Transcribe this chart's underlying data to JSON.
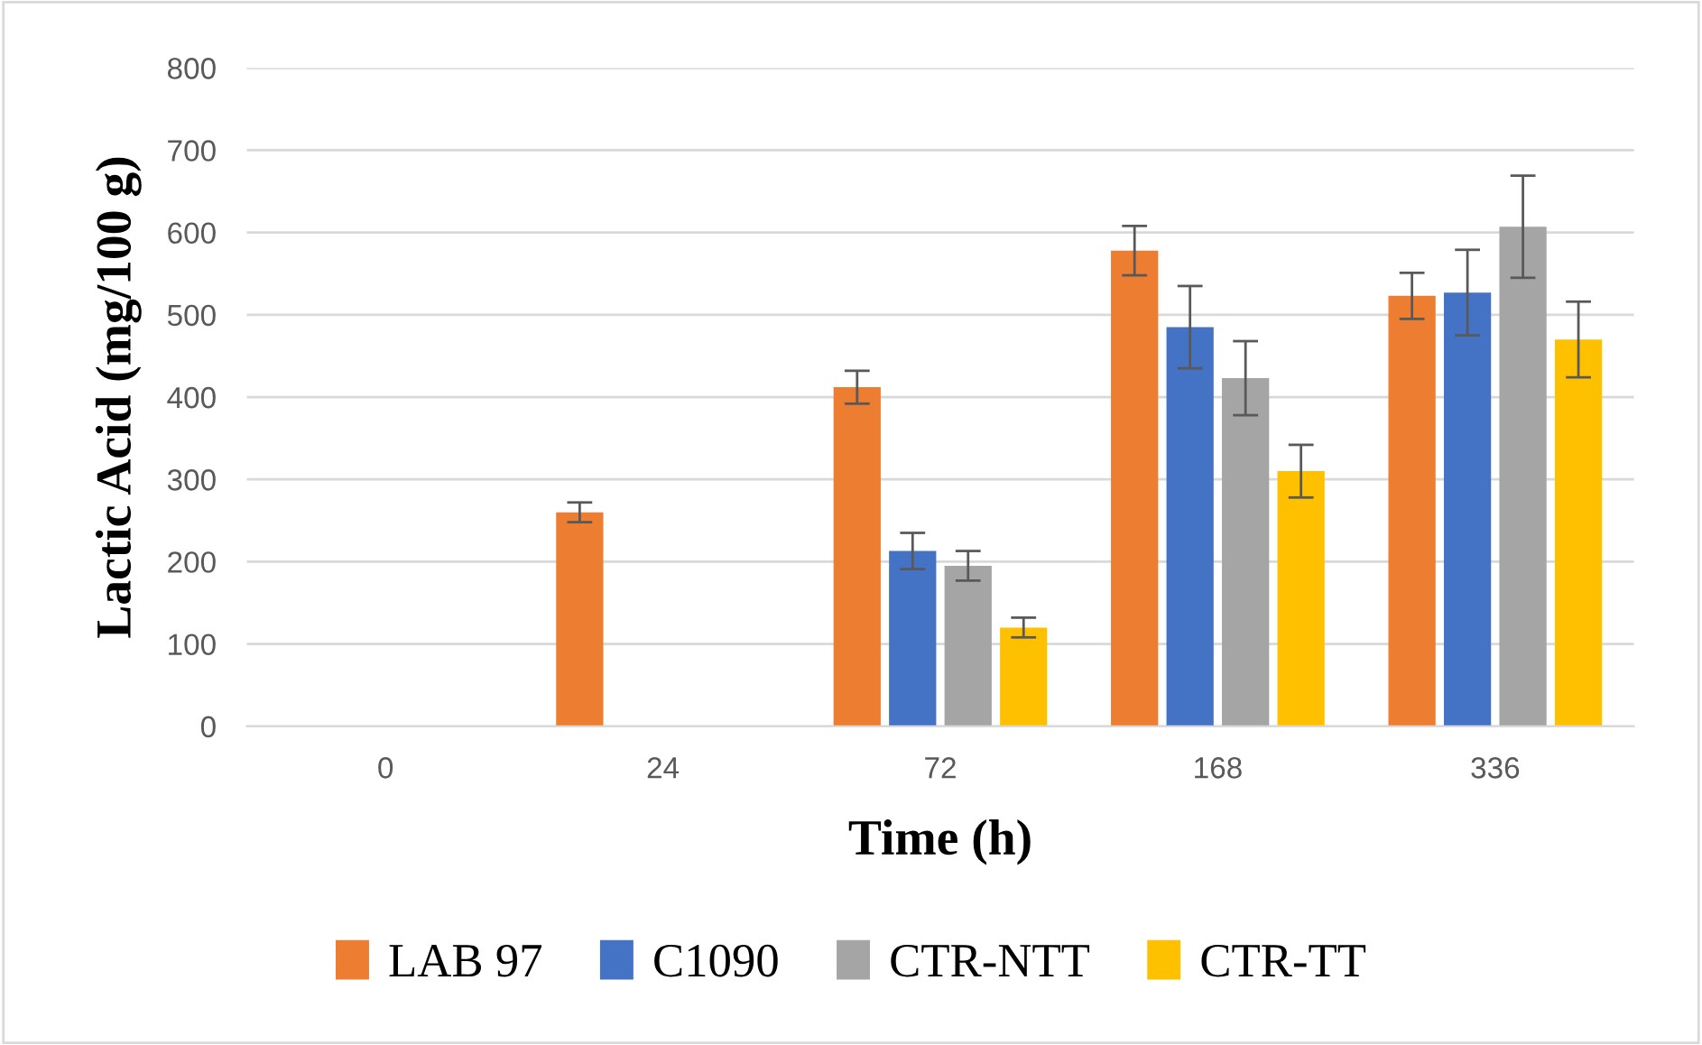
{
  "chart_data": {
    "type": "bar",
    "xlabel": "Time (h)",
    "ylabel": "Lactic Acid (mg/100 g)",
    "categories": [
      "0",
      "24",
      "72",
      "168",
      "336"
    ],
    "series": [
      {
        "name": "LAB 97",
        "color": "#ed7d31",
        "values": [
          null,
          260,
          412,
          578,
          523
        ],
        "errors": [
          null,
          12,
          20,
          30,
          28
        ]
      },
      {
        "name": "C1090",
        "color": "#4472c4",
        "values": [
          null,
          null,
          213,
          485,
          527
        ],
        "errors": [
          null,
          null,
          22,
          50,
          52
        ]
      },
      {
        "name": "CTR-NTT",
        "color": "#a5a5a5",
        "values": [
          null,
          null,
          195,
          423,
          607
        ],
        "errors": [
          null,
          null,
          18,
          45,
          62
        ]
      },
      {
        "name": "CTR-TT",
        "color": "#ffc000",
        "values": [
          null,
          null,
          120,
          310,
          470
        ],
        "errors": [
          null,
          null,
          12,
          32,
          46
        ]
      }
    ],
    "ylim": [
      0,
      800
    ],
    "yticks": [
      0,
      100,
      200,
      300,
      400,
      500,
      600,
      700,
      800
    ],
    "grid": "y",
    "legend": "bottom"
  }
}
